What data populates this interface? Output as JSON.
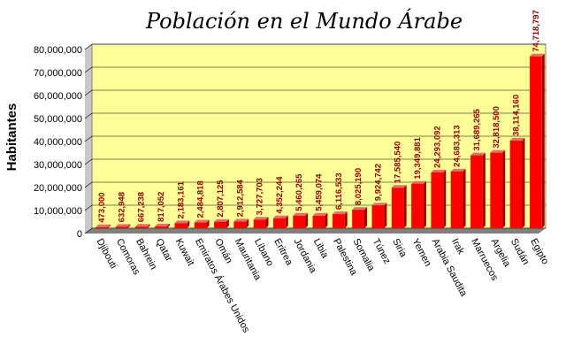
{
  "chart_data": {
    "type": "bar",
    "title": "Población en el Mundo Árabe",
    "ylabel": "Habitantes",
    "xlabel": "",
    "ylim": [
      0,
      80000000
    ],
    "yticks": [
      0,
      10000000,
      20000000,
      30000000,
      40000000,
      50000000,
      60000000,
      70000000,
      80000000
    ],
    "ytick_labels": [
      "0",
      "10,000,000",
      "20,000,000",
      "30,000,000",
      "40,000,000",
      "50,000,000",
      "60,000,000",
      "70,000,000",
      "80,000,000"
    ],
    "grid": true,
    "legend": "none",
    "colors": {
      "plot_bg": "#ffff99",
      "bar": "#ff0000",
      "bar_shadow": "#990000",
      "label": "#8b0000"
    },
    "categories": [
      "Djibouti",
      "Comoras",
      "Bahrein",
      "Qatar",
      "Kuwait",
      "Emiratos Árabes Unidos",
      "Omán",
      "Mauritania",
      "Líbano",
      "Eritrea",
      "Jordania",
      "Libia",
      "Palestina",
      "Somalia",
      "Túnez",
      "Siria",
      "Yemen",
      "Arabia Saudita",
      "Irak",
      "Marruecos",
      "Argelia",
      "Sudán",
      "Egipto"
    ],
    "values": [
      473000,
      632948,
      667238,
      817052,
      2183161,
      2484818,
      2807125,
      2912584,
      3727703,
      4352244,
      5460265,
      5459074,
      6116533,
      8025190,
      9924742,
      17585540,
      19349881,
      24293092,
      24683313,
      31689265,
      32818500,
      38114160,
      74718797
    ],
    "value_labels": [
      "473,000",
      "632,948",
      "667,238",
      "817,052",
      "2,183,161",
      "2,484,818",
      "2,807,125",
      "2,912,584",
      "3,727,703",
      "4,352,244",
      "5,460,265",
      "5,459,074",
      "6,116,533",
      "8,025,190",
      "9,924,742",
      "17,585,540",
      "19,349,881",
      "24,293,092",
      "24,683,313",
      "31,689,265",
      "32,818,500",
      "38,114,160",
      "74,718,797"
    ]
  }
}
